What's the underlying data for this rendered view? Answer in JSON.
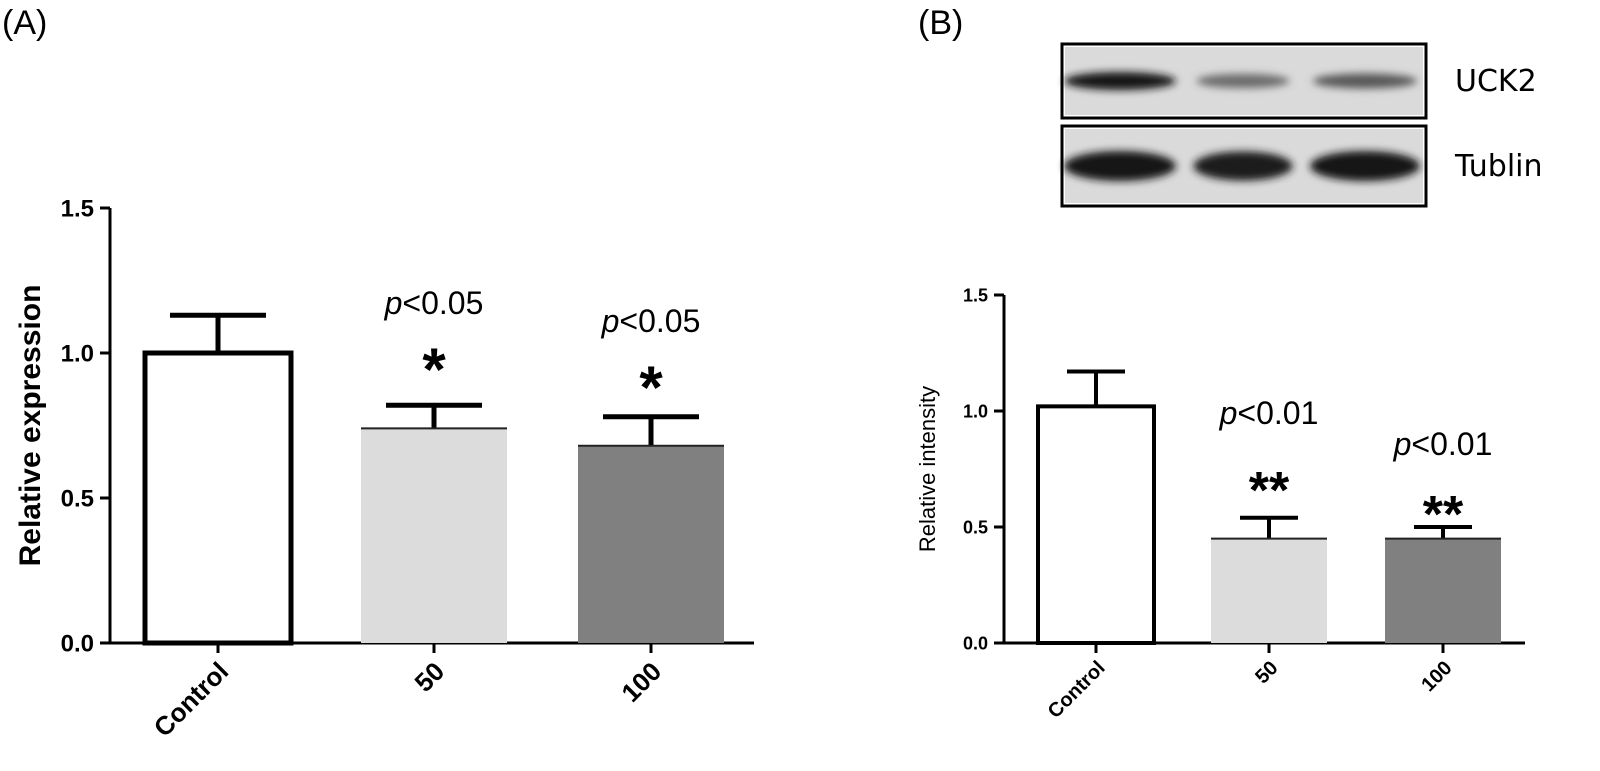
{
  "panel_labels": {
    "a": "(A)",
    "b": "(B)"
  },
  "blot": {
    "rows": [
      {
        "label": "UCK2",
        "band_intensity": [
          1.0,
          0.55,
          0.65
        ]
      },
      {
        "label": "Tublin",
        "band_intensity": [
          1.0,
          0.95,
          1.0
        ]
      }
    ]
  },
  "chart_data": [
    {
      "type": "bar",
      "panel": "(A)",
      "categories": [
        "Control",
        "50",
        "100"
      ],
      "values": [
        1.0,
        0.74,
        0.68
      ],
      "errors": [
        0.13,
        0.08,
        0.1
      ],
      "bar_colors": [
        "#ffffff",
        "#dcdcdc",
        "#808080"
      ],
      "annotations": [
        {
          "p_prefix": "p",
          "p_rest": "<0.05",
          "stars": "*"
        },
        {
          "p_prefix": "p",
          "p_rest": "<0.05",
          "stars": "*"
        }
      ],
      "ylabel": "Relative expression",
      "xlabel": "",
      "ylim": [
        0,
        1.5
      ],
      "yticks": [
        "0.0",
        "0.5",
        "1.0",
        "1.5"
      ],
      "ytick_values": [
        0,
        0.5,
        1.0,
        1.5
      ]
    },
    {
      "type": "bar",
      "panel": "(B)",
      "categories": [
        "Control",
        "50",
        "100"
      ],
      "values": [
        1.02,
        0.45,
        0.45
      ],
      "errors": [
        0.15,
        0.09,
        0.05
      ],
      "bar_colors": [
        "#ffffff",
        "#dcdcdc",
        "#808080"
      ],
      "annotations": [
        {
          "p_prefix": "p",
          "p_rest": "<0.01",
          "stars": "**"
        },
        {
          "p_prefix": "p",
          "p_rest": "<0.01",
          "stars": "**"
        }
      ],
      "ylabel": "Relative intensity",
      "xlabel": "",
      "ylim": [
        0,
        1.5
      ],
      "yticks": [
        "0.0",
        "0.5",
        "1.0",
        "1.5"
      ],
      "ytick_values": [
        0,
        0.5,
        1.0,
        1.5
      ]
    }
  ]
}
